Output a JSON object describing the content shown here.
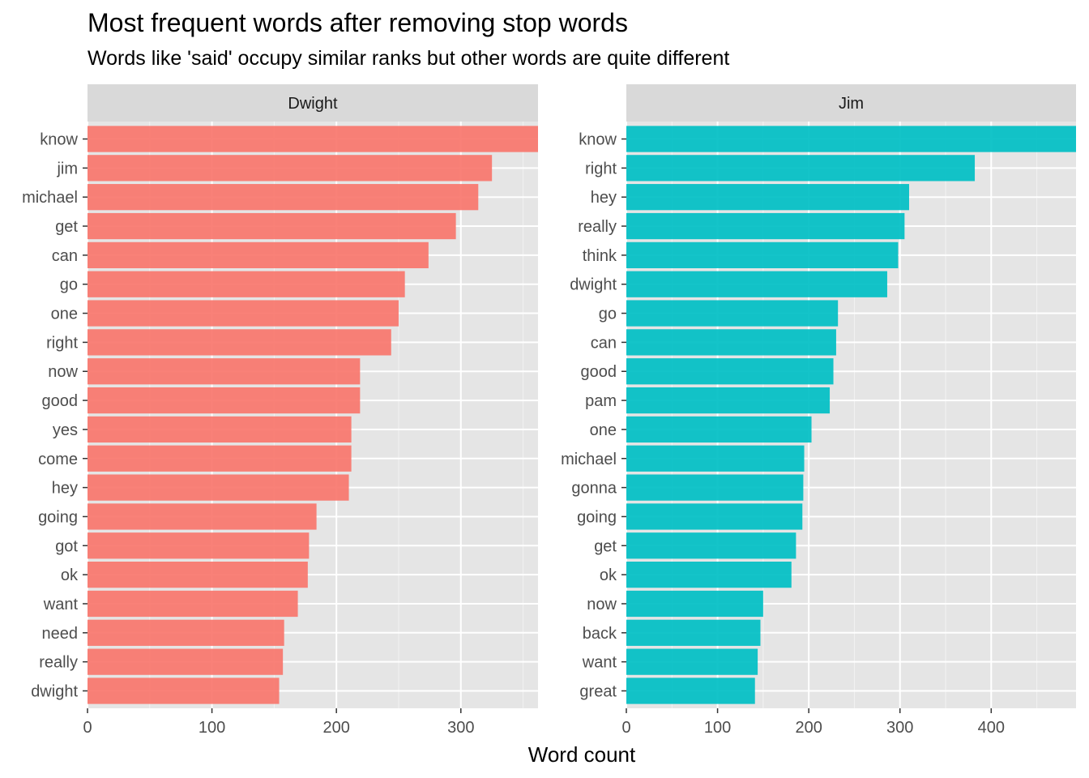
{
  "title": "Most frequent words after removing stop words",
  "subtitle": "Words like 'said' occupy similar ranks but other words are quite different",
  "chart_data": {
    "type": "bar",
    "orientation": "horizontal",
    "xlabel": "Word count",
    "ylabel": "",
    "grid": true,
    "panel_background": "#e5e5e5",
    "panels": [
      {
        "facet": "Dwight",
        "color": "#f8766d",
        "xlim": [
          0,
          362
        ],
        "xticks": [
          0,
          100,
          200,
          300
        ],
        "categories": [
          "know",
          "jim",
          "michael",
          "get",
          "can",
          "go",
          "one",
          "right",
          "now",
          "good",
          "yes",
          "come",
          "hey",
          "going",
          "got",
          "ok",
          "want",
          "need",
          "really",
          "dwight"
        ],
        "values": [
          362,
          325,
          314,
          296,
          274,
          255,
          250,
          244,
          219,
          219,
          212,
          212,
          210,
          184,
          178,
          177,
          169,
          158,
          157,
          154
        ]
      },
      {
        "facet": "Jim",
        "color": "#00bfc4",
        "xlim": [
          0,
          493
        ],
        "xticks": [
          0,
          100,
          200,
          300,
          400
        ],
        "categories": [
          "know",
          "right",
          "hey",
          "really",
          "think",
          "dwight",
          "go",
          "can",
          "good",
          "pam",
          "one",
          "michael",
          "gonna",
          "going",
          "get",
          "ok",
          "now",
          "back",
          "want",
          "great"
        ],
        "values": [
          493,
          382,
          310,
          305,
          298,
          286,
          232,
          230,
          227,
          223,
          203,
          195,
          194,
          193,
          186,
          181,
          150,
          147,
          144,
          141
        ]
      }
    ]
  }
}
